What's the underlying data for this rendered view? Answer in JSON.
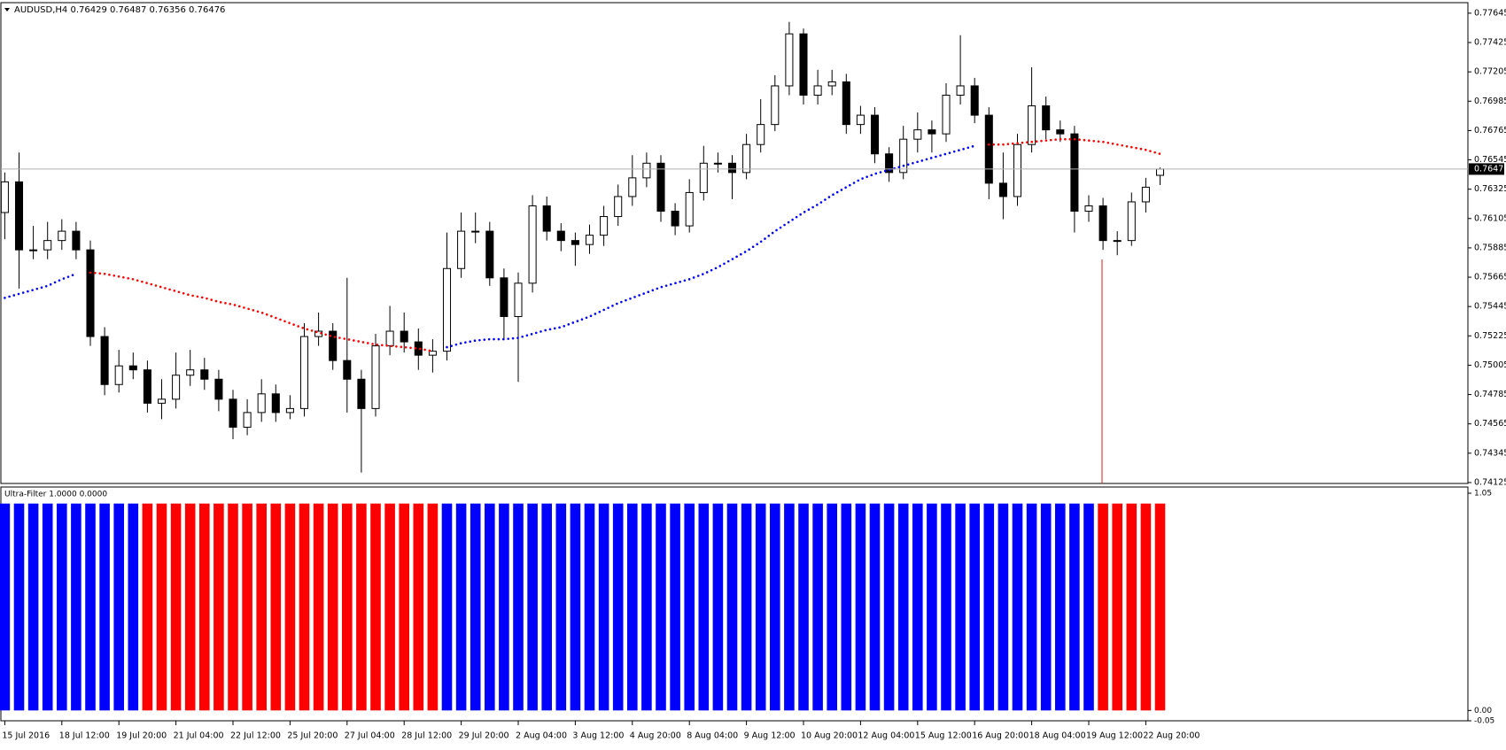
{
  "chart_data": [
    {
      "type": "candlestick",
      "title": "AUDUSD,H4  0.76429 0.76487 0.76356 0.76476",
      "open": [
        0.7615,
        0.7638,
        0.7587,
        0.7587,
        0.7594,
        0.7601,
        0.7587,
        0.7522,
        0.7486,
        0.75,
        0.7497,
        0.7472,
        0.7475,
        0.7493,
        0.7497,
        0.749,
        0.7475,
        0.7454,
        0.7465,
        0.7479,
        0.7465,
        0.7468,
        0.7522,
        0.7526,
        0.7504,
        0.749,
        0.7468,
        0.7515,
        0.7526,
        0.7518,
        0.7508,
        0.7511,
        0.7573,
        0.7601,
        0.7601,
        0.7566,
        0.7537,
        0.7562,
        0.762,
        0.7601,
        0.7594,
        0.7591,
        0.7598,
        0.7612,
        0.7627,
        0.7641,
        0.7652,
        0.7616,
        0.7605,
        0.763,
        0.7652,
        0.7652,
        0.7645,
        0.7666,
        0.7681,
        0.771,
        0.7749,
        0.7703,
        0.771,
        0.7713,
        0.7681,
        0.7688,
        0.7659,
        0.7645,
        0.767,
        0.7677,
        0.7674,
        0.7703,
        0.771,
        0.7688,
        0.7637,
        0.7627,
        0.7666,
        0.7695,
        0.7677,
        0.7674,
        0.7616,
        0.762,
        0.7594,
        0.7594,
        0.7623,
        0.76429
      ],
      "high": [
        0.7645,
        0.766,
        0.7605,
        0.7608,
        0.761,
        0.7608,
        0.7594,
        0.7529,
        0.7512,
        0.751,
        0.7504,
        0.749,
        0.751,
        0.7512,
        0.7506,
        0.7497,
        0.7482,
        0.7475,
        0.749,
        0.7486,
        0.7478,
        0.7532,
        0.754,
        0.7532,
        0.7566,
        0.7497,
        0.7524,
        0.7545,
        0.754,
        0.7528,
        0.752,
        0.76,
        0.7615,
        0.7615,
        0.7608,
        0.7573,
        0.757,
        0.7628,
        0.7627,
        0.7607,
        0.76,
        0.7606,
        0.762,
        0.7636,
        0.7658,
        0.766,
        0.7658,
        0.7622,
        0.764,
        0.7665,
        0.766,
        0.7658,
        0.7674,
        0.77,
        0.7718,
        0.7758,
        0.7753,
        0.7722,
        0.7722,
        0.7719,
        0.7695,
        0.7694,
        0.7664,
        0.768,
        0.769,
        0.7684,
        0.7712,
        0.7748,
        0.7716,
        0.7694,
        0.766,
        0.7674,
        0.7724,
        0.7702,
        0.7684,
        0.768,
        0.7628,
        0.7626,
        0.7601,
        0.763,
        0.7641,
        0.76487
      ],
      "low": [
        0.7595,
        0.7558,
        0.758,
        0.758,
        0.7587,
        0.758,
        0.7515,
        0.7478,
        0.748,
        0.749,
        0.7465,
        0.746,
        0.7468,
        0.7485,
        0.7482,
        0.7466,
        0.7445,
        0.7448,
        0.7458,
        0.7458,
        0.746,
        0.7462,
        0.7515,
        0.7497,
        0.7465,
        0.742,
        0.7462,
        0.7508,
        0.751,
        0.7497,
        0.7495,
        0.7504,
        0.7566,
        0.7592,
        0.756,
        0.752,
        0.7488,
        0.7555,
        0.7594,
        0.7586,
        0.7575,
        0.7584,
        0.759,
        0.7605,
        0.762,
        0.7634,
        0.7608,
        0.7598,
        0.76,
        0.7624,
        0.7645,
        0.7625,
        0.764,
        0.766,
        0.7676,
        0.7703,
        0.7696,
        0.7696,
        0.7703,
        0.7674,
        0.7674,
        0.7652,
        0.7638,
        0.764,
        0.766,
        0.766,
        0.7668,
        0.7696,
        0.7682,
        0.7625,
        0.761,
        0.762,
        0.766,
        0.767,
        0.7668,
        0.76,
        0.7608,
        0.7587,
        0.7583,
        0.759,
        0.7615,
        0.76356
      ],
      "close": [
        0.7638,
        0.7587,
        0.7587,
        0.7594,
        0.7601,
        0.7587,
        0.7522,
        0.7486,
        0.75,
        0.7497,
        0.7472,
        0.7475,
        0.7493,
        0.7497,
        0.749,
        0.7475,
        0.7454,
        0.7465,
        0.7479,
        0.7465,
        0.7468,
        0.7522,
        0.7526,
        0.7504,
        0.749,
        0.7468,
        0.7515,
        0.7526,
        0.7518,
        0.7508,
        0.7511,
        0.7573,
        0.7601,
        0.7601,
        0.7566,
        0.7537,
        0.7562,
        0.762,
        0.7601,
        0.7594,
        0.7591,
        0.7598,
        0.7612,
        0.7627,
        0.7641,
        0.7652,
        0.7616,
        0.7605,
        0.763,
        0.7652,
        0.7652,
        0.7645,
        0.7666,
        0.7681,
        0.771,
        0.7749,
        0.7703,
        0.771,
        0.7713,
        0.7681,
        0.7688,
        0.7659,
        0.7645,
        0.767,
        0.7677,
        0.7674,
        0.7703,
        0.771,
        0.7688,
        0.7637,
        0.7627,
        0.7666,
        0.7695,
        0.7677,
        0.7674,
        0.7616,
        0.762,
        0.7594,
        0.7594,
        0.7623,
        0.7634,
        0.76476
      ],
      "ma": {
        "values": [
          0.7551,
          0.7554,
          0.7557,
          0.756,
          0.7565,
          0.7569,
          0.757,
          0.7569,
          0.7567,
          0.7565,
          0.7562,
          0.7559,
          0.7556,
          0.7553,
          0.7551,
          0.7548,
          0.7546,
          0.7543,
          0.754,
          0.7536,
          0.7532,
          0.7528,
          0.7525,
          0.7522,
          0.752,
          0.7518,
          0.7516,
          0.7515,
          0.7514,
          0.7513,
          0.7511,
          0.7514,
          0.7517,
          0.7519,
          0.752,
          0.752,
          0.7521,
          0.7524,
          0.7527,
          0.7529,
          0.7533,
          0.7537,
          0.7542,
          0.7547,
          0.7551,
          0.7555,
          0.7559,
          0.7562,
          0.7565,
          0.7569,
          0.7574,
          0.758,
          0.7586,
          0.7593,
          0.7601,
          0.7608,
          0.7615,
          0.7621,
          0.7628,
          0.7634,
          0.764,
          0.7644,
          0.7647,
          0.765,
          0.7653,
          0.7656,
          0.7659,
          0.7662,
          0.7665,
          0.7666,
          0.7666,
          0.7667,
          0.7668,
          0.7669,
          0.767,
          0.767,
          0.7669,
          0.7668,
          0.7666,
          0.7664,
          0.7662,
          0.7659
        ],
        "colors": [
          "blue",
          "blue",
          "blue",
          "blue",
          "blue",
          "blue",
          "red",
          "red",
          "red",
          "red",
          "red",
          "red",
          "red",
          "red",
          "red",
          "red",
          "red",
          "red",
          "red",
          "red",
          "red",
          "red",
          "red",
          "red",
          "red",
          "red",
          "red",
          "red",
          "red",
          "red",
          "red",
          "blue",
          "blue",
          "blue",
          "blue",
          "blue",
          "blue",
          "blue",
          "blue",
          "blue",
          "blue",
          "blue",
          "blue",
          "blue",
          "blue",
          "blue",
          "blue",
          "blue",
          "blue",
          "blue",
          "blue",
          "blue",
          "blue",
          "blue",
          "blue",
          "blue",
          "blue",
          "blue",
          "blue",
          "blue",
          "blue",
          "blue",
          "blue",
          "blue",
          "blue",
          "blue",
          "blue",
          "blue",
          "blue",
          "red",
          "red",
          "red",
          "red",
          "red",
          "red",
          "red",
          "red",
          "red",
          "red",
          "red",
          "red",
          "red"
        ]
      },
      "ylim": [
        0.74118,
        0.77724
      ],
      "yticks": [
        0.77645,
        0.77425,
        0.77205,
        0.76985,
        0.76765,
        0.76545,
        0.76325,
        0.76105,
        0.75885,
        0.75665,
        0.75445,
        0.75225,
        0.75005,
        0.74785,
        0.74565,
        0.74345,
        0.74125
      ],
      "xticks": [
        {
          "value": 0,
          "label": "15 Jul 2016"
        },
        {
          "value": 4,
          "label": "18 Jul 12:00"
        },
        {
          "value": 8,
          "label": "19 Jul 20:00"
        },
        {
          "value": 12,
          "label": "21 Jul 04:00"
        },
        {
          "value": 16,
          "label": "22 Jul 12:00"
        },
        {
          "value": 20,
          "label": "25 Jul 20:00"
        },
        {
          "value": 24,
          "label": "27 Jul 04:00"
        },
        {
          "value": 28,
          "label": "28 Jul 12:00"
        },
        {
          "value": 32,
          "label": "29 Jul 20:00"
        },
        {
          "value": 36,
          "label": "2 Aug 04:00"
        },
        {
          "value": 40,
          "label": "3 Aug 12:00"
        },
        {
          "value": 44,
          "label": "4 Aug 20:00"
        },
        {
          "value": 48,
          "label": "8 Aug 04:00"
        },
        {
          "value": 52,
          "label": "9 Aug 12:00"
        },
        {
          "value": 56,
          "label": "10 Aug 20:00"
        },
        {
          "value": 60,
          "label": "12 Aug 04:00"
        },
        {
          "value": 64,
          "label": "15 Aug 12:00"
        },
        {
          "value": 68,
          "label": "16 Aug 20:00"
        },
        {
          "value": 72,
          "label": "18 Aug 04:00"
        },
        {
          "value": 76,
          "label": "19 Aug 12:00"
        },
        {
          "value": 80,
          "label": "22 Aug 20:00"
        }
      ]
    },
    {
      "type": "bar",
      "title": "Ultra-Filter 1.0000 0.0000",
      "values": [
        1,
        1,
        1,
        1,
        1,
        1,
        1,
        1,
        1,
        1,
        1,
        1,
        1,
        1,
        1,
        1,
        1,
        1,
        1,
        1,
        1,
        1,
        1,
        1,
        1,
        1,
        1,
        1,
        1,
        1,
        1,
        1,
        1,
        1,
        1,
        1,
        1,
        1,
        1,
        1,
        1,
        1,
        1,
        1,
        1,
        1,
        1,
        1,
        1,
        1,
        1,
        1,
        1,
        1,
        1,
        1,
        1,
        1,
        1,
        1,
        1,
        1,
        1,
        1,
        1,
        1,
        1,
        1,
        1,
        1,
        1,
        1,
        1,
        1,
        1,
        1,
        1,
        1,
        1,
        1,
        1,
        1
      ],
      "colors": [
        "blue",
        "blue",
        "blue",
        "blue",
        "blue",
        "blue",
        "blue",
        "blue",
        "blue",
        "blue",
        "red",
        "red",
        "red",
        "red",
        "red",
        "red",
        "red",
        "red",
        "red",
        "red",
        "red",
        "red",
        "red",
        "red",
        "red",
        "red",
        "red",
        "red",
        "red",
        "red",
        "red",
        "blue",
        "blue",
        "blue",
        "blue",
        "blue",
        "blue",
        "blue",
        "blue",
        "blue",
        "blue",
        "blue",
        "blue",
        "blue",
        "blue",
        "blue",
        "blue",
        "blue",
        "blue",
        "blue",
        "blue",
        "blue",
        "blue",
        "blue",
        "blue",
        "blue",
        "blue",
        "blue",
        "blue",
        "blue",
        "blue",
        "blue",
        "blue",
        "blue",
        "blue",
        "blue",
        "blue",
        "blue",
        "blue",
        "blue",
        "blue",
        "blue",
        "blue",
        "blue",
        "blue",
        "blue",
        "blue",
        "red",
        "red",
        "red",
        "red",
        "red"
      ],
      "ylim": [
        -0.05,
        1.05
      ],
      "yticks": [
        1.05,
        {
          "value": 0,
          "label": "0.00"
        },
        -0.05
      ]
    }
  ]
}
